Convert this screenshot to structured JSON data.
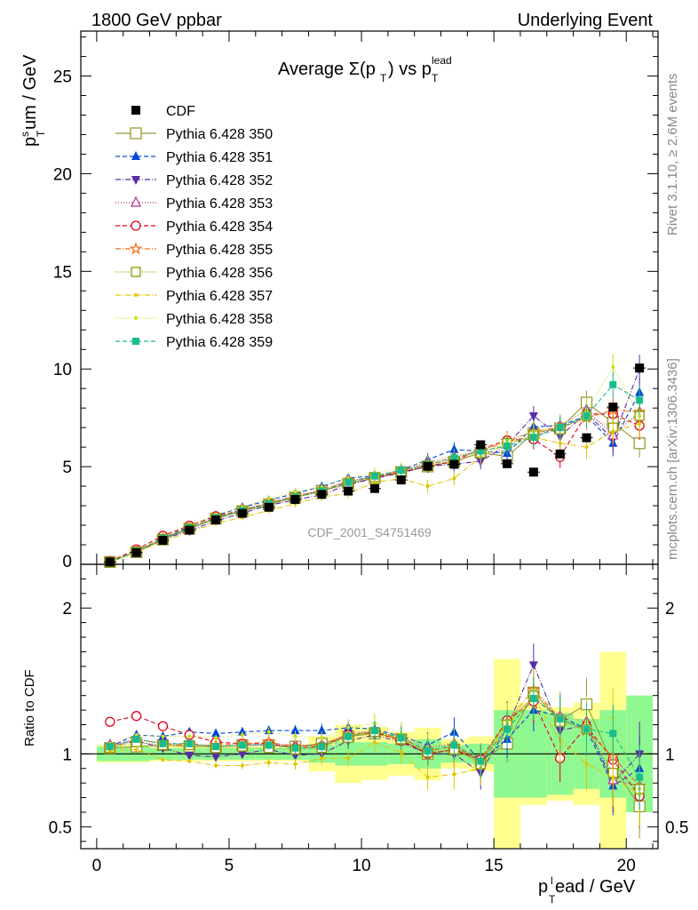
{
  "header": {
    "left": "1800 GeV ppbar",
    "right": "Underlying Event"
  },
  "side_labels": {
    "rivet": "Rivet 3.1.10, ≥ 2.6M events",
    "mcplots": "mcplots.cern.ch [arXiv:1306.3436]"
  },
  "chart_data": [
    {
      "type": "scatter",
      "panel": "main",
      "title": "Average Σ(p_T) vs p_T^lead",
      "ylabel": "p_T^sum / GeV",
      "xlabel": "",
      "xlim": [
        -0.6,
        21.2
      ],
      "ylim": [
        0,
        27.3
      ],
      "x_ticks": [
        0,
        5,
        10,
        15,
        20
      ],
      "y_ticks": [
        0,
        5,
        10,
        15,
        20,
        25
      ],
      "watermark": "CDF_2001_S4751469",
      "legend_position": "top-left",
      "x": [
        0.5,
        1.5,
        2.5,
        3.5,
        4.5,
        5.5,
        6.5,
        7.5,
        8.5,
        9.5,
        10.5,
        11.5,
        12.5,
        13.5,
        14.5,
        15.5,
        16.5,
        17.5,
        18.5,
        19.5,
        20.5
      ],
      "data": {
        "name": "CDF",
        "color": "#000000",
        "values": [
          0.12,
          0.6,
          1.23,
          1.75,
          2.27,
          2.61,
          2.92,
          3.32,
          3.58,
          3.75,
          3.88,
          4.32,
          5.02,
          5.12,
          6.12,
          5.15,
          4.72,
          5.65,
          6.48,
          8.05,
          10.05
        ]
      },
      "series": [
        {
          "name": "Pythia 6.428 350",
          "color": "#999933",
          "marker": "open-square",
          "dash": "solid",
          "values": [
            0.12,
            0.62,
            1.27,
            1.82,
            2.34,
            2.72,
            3.07,
            3.42,
            3.77,
            4.12,
            4.42,
            4.72,
            5.01,
            5.25,
            5.72,
            5.52,
            6.72,
            6.96,
            8.28,
            7.25,
            6.2
          ]
        },
        {
          "name": "Pythia 6.428 351",
          "color": "#0047d6",
          "marker": "filled-triangle-up",
          "dash": "5,3",
          "values": [
            0.12,
            0.68,
            1.33,
            1.95,
            2.5,
            2.92,
            3.27,
            3.63,
            3.98,
            4.42,
            4.52,
            4.82,
            5.35,
            5.88,
            5.8,
            5.68,
            7.05,
            7.1,
            7.6,
            6.2,
            8.8
          ]
        },
        {
          "name": "Pythia 6.428 352",
          "color": "#5a2ca8",
          "marker": "filled-triangle-down",
          "dash": "6,2,1,2",
          "values": [
            0.12,
            0.65,
            1.28,
            1.73,
            2.22,
            2.62,
            3.02,
            3.3,
            3.56,
            4.08,
            4.4,
            4.68,
            5.02,
            5.13,
            5.28,
            6.1,
            7.6,
            6.55,
            7.75,
            6.4,
            10.0
          ]
        },
        {
          "name": "Pythia 6.428 353",
          "color": "#bd2a8b",
          "marker": "open-triangle-up",
          "dash": "1,2",
          "values": [
            0.12,
            0.66,
            1.31,
            1.87,
            2.38,
            2.77,
            3.12,
            3.52,
            3.78,
            4.28,
            4.48,
            4.78,
            5.22,
            5.5,
            5.8,
            6.35,
            6.5,
            7.1,
            7.9,
            6.6,
            7.8
          ]
        },
        {
          "name": "Pythia 6.428 354",
          "color": "#e0001a",
          "marker": "open-circle",
          "dash": "5,3",
          "values": [
            0.15,
            0.76,
            1.46,
            1.98,
            2.46,
            2.78,
            3.12,
            3.45,
            3.75,
            4.22,
            4.47,
            4.72,
            5.02,
            5.28,
            5.9,
            6.35,
            6.4,
            5.5,
            7.7,
            7.7,
            7.1
          ]
        },
        {
          "name": "Pythia 6.428 355",
          "color": "#f27013",
          "marker": "open-star",
          "dash": "6,2,1,2",
          "values": [
            0.12,
            0.66,
            1.32,
            1.86,
            2.4,
            2.8,
            3.15,
            3.48,
            3.8,
            4.25,
            4.48,
            4.8,
            5.1,
            5.4,
            5.8,
            6.3,
            6.8,
            7.0,
            7.5,
            7.9,
            7.8
          ]
        },
        {
          "name": "Pythia 6.428 356",
          "color": "#8a9a00",
          "marker": "open-square-small",
          "dash": "1,2",
          "values": [
            0.12,
            0.65,
            1.3,
            1.85,
            2.35,
            2.74,
            3.05,
            3.42,
            3.72,
            4.15,
            4.46,
            4.75,
            5.05,
            5.3,
            5.7,
            6.2,
            6.6,
            6.9,
            7.6,
            7.0,
            7.6
          ]
        },
        {
          "name": "Pythia 6.428 357",
          "color": "#e0c400",
          "marker": "small-dot",
          "dash": "6,2,1,2",
          "values": [
            0.12,
            0.62,
            1.18,
            1.66,
            2.1,
            2.4,
            2.76,
            3.1,
            3.46,
            3.62,
            4.2,
            4.38,
            4.0,
            4.4,
            5.5,
            6.2,
            6.5,
            6.2,
            6.0,
            6.8,
            7.2
          ]
        },
        {
          "name": "Pythia 6.428 358",
          "color": "#c8e018",
          "marker": "small-dot",
          "dash": "1,2",
          "values": [
            0.12,
            0.68,
            1.38,
            1.96,
            2.52,
            2.94,
            3.37,
            3.72,
            3.96,
            4.42,
            4.68,
            4.92,
            5.25,
            5.52,
            5.9,
            6.3,
            6.8,
            7.1,
            7.9,
            10.1,
            7.6
          ]
        },
        {
          "name": "Pythia 6.428 359",
          "color": "#1abc8c",
          "marker": "filled-square-small",
          "dash": "5,3",
          "values": [
            0.12,
            0.66,
            1.32,
            1.87,
            2.38,
            2.76,
            3.1,
            3.45,
            3.75,
            4.2,
            4.52,
            4.82,
            5.1,
            5.45,
            5.8,
            6.05,
            6.5,
            7.0,
            7.6,
            9.2,
            8.4
          ]
        }
      ]
    },
    {
      "type": "scatter",
      "panel": "ratio",
      "ylabel": "Ratio to CDF",
      "xlabel": "p_T^lead / GeV",
      "xlim": [
        -0.6,
        21.2
      ],
      "ylim": [
        0.35,
        2.3
      ],
      "x_ticks": [
        0,
        5,
        10,
        15,
        20
      ],
      "y_ticks": [
        0.5,
        1,
        2
      ],
      "reference_line": 1,
      "band_1sigma_color": "#90f890",
      "band_2sigma_color": "#ffff90",
      "band_1sigma_halfwidth": [
        0.05,
        0.05,
        0.04,
        0.04,
        0.04,
        0.04,
        0.04,
        0.04,
        0.06,
        0.08,
        0.08,
        0.07,
        0.1,
        0.06,
        0.07,
        0.3,
        0.3,
        0.28,
        0.24,
        0.3,
        0.4
      ],
      "band_2sigma_halfwidth": [
        0.06,
        0.06,
        0.05,
        0.05,
        0.05,
        0.05,
        0.05,
        0.05,
        0.12,
        0.2,
        0.18,
        0.15,
        0.18,
        0.1,
        0.12,
        0.65,
        0.35,
        0.32,
        0.35,
        0.7,
        0.4
      ],
      "x": [
        0.5,
        1.5,
        2.5,
        3.5,
        4.5,
        5.5,
        6.5,
        7.5,
        8.5,
        9.5,
        10.5,
        11.5,
        12.5,
        13.5,
        14.5,
        15.5,
        16.5,
        17.5,
        18.5,
        19.5,
        20.5
      ],
      "series": [
        {
          "name": "Pythia 6.428 350",
          "values": [
            1.04,
            1.05,
            1.06,
            1.05,
            1.05,
            1.06,
            1.06,
            1.05,
            1.07,
            1.12,
            1.14,
            1.1,
            1.0,
            1.03,
            0.95,
            1.07,
            1.42,
            1.23,
            1.34,
            0.92,
            0.64
          ]
        },
        {
          "name": "Pythia 6.428 351",
          "values": [
            1.05,
            1.13,
            1.12,
            1.15,
            1.14,
            1.15,
            1.16,
            1.16,
            1.16,
            1.18,
            1.17,
            1.12,
            1.06,
            1.15,
            0.95,
            1.1,
            1.3,
            1.26,
            1.17,
            0.78,
            0.9
          ]
        },
        {
          "name": "Pythia 6.428 352",
          "values": [
            1.05,
            1.09,
            1.04,
            0.99,
            0.98,
            1.0,
            1.03,
            0.99,
            1.0,
            1.09,
            1.13,
            1.08,
            1.0,
            1.0,
            0.87,
            1.18,
            1.61,
            1.16,
            1.2,
            0.8,
            1.0
          ]
        },
        {
          "name": "Pythia 6.428 353",
          "values": [
            1.06,
            1.1,
            1.07,
            1.07,
            1.05,
            1.06,
            1.07,
            1.06,
            1.06,
            1.14,
            1.16,
            1.11,
            1.04,
            1.07,
            0.95,
            1.23,
            1.38,
            1.26,
            1.22,
            0.82,
            0.78
          ]
        },
        {
          "name": "Pythia 6.428 354",
          "values": [
            1.22,
            1.26,
            1.19,
            1.13,
            1.08,
            1.07,
            1.07,
            1.04,
            1.05,
            1.13,
            1.15,
            1.09,
            1.0,
            1.03,
            0.96,
            1.23,
            1.36,
            0.97,
            1.19,
            0.96,
            0.71
          ]
        },
        {
          "name": "Pythia 6.428 355",
          "values": [
            1.04,
            1.1,
            1.07,
            1.06,
            1.06,
            1.07,
            1.08,
            1.05,
            1.06,
            1.13,
            1.15,
            1.11,
            1.02,
            1.05,
            0.95,
            1.22,
            1.44,
            1.24,
            1.16,
            0.98,
            0.78
          ]
        },
        {
          "name": "Pythia 6.428 356",
          "values": [
            1.04,
            1.08,
            1.06,
            1.06,
            1.04,
            1.05,
            1.04,
            1.03,
            1.04,
            1.11,
            1.15,
            1.1,
            1.01,
            1.03,
            0.93,
            1.2,
            1.4,
            1.22,
            1.17,
            0.87,
            0.76
          ]
        },
        {
          "name": "Pythia 6.428 357",
          "values": [
            1.02,
            1.03,
            0.96,
            0.95,
            0.92,
            0.92,
            0.94,
            0.93,
            0.97,
            0.97,
            1.08,
            1.01,
            0.84,
            0.86,
            0.9,
            1.2,
            1.38,
            1.1,
            0.93,
            0.84,
            0.72
          ]
        },
        {
          "name": "Pythia 6.428 358",
          "values": [
            1.07,
            1.13,
            1.12,
            1.12,
            1.11,
            1.13,
            1.15,
            1.12,
            1.11,
            1.18,
            1.21,
            1.14,
            1.05,
            1.08,
            0.96,
            1.22,
            1.44,
            1.26,
            1.22,
            1.25,
            0.76
          ]
        },
        {
          "name": "Pythia 6.428 359",
          "values": [
            1.05,
            1.1,
            1.07,
            1.07,
            1.05,
            1.06,
            1.06,
            1.04,
            1.05,
            1.12,
            1.16,
            1.11,
            1.02,
            1.06,
            0.95,
            1.17,
            1.38,
            1.24,
            1.17,
            1.14,
            0.84
          ]
        }
      ]
    }
  ]
}
